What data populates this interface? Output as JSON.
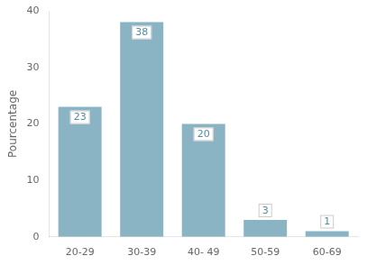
{
  "chart_data": {
    "type": "bar",
    "categories": [
      "20-29",
      "30-39",
      "40- 49",
      "50-59",
      "60-69"
    ],
    "values": [
      23,
      38,
      20,
      3,
      1
    ],
    "color": "#8ab4c4",
    "ylabel": "Pourcentage",
    "ylim": [
      0,
      40
    ],
    "yticks": [
      0,
      10,
      20,
      30,
      40
    ],
    "grid": false,
    "data_labels": true
  }
}
